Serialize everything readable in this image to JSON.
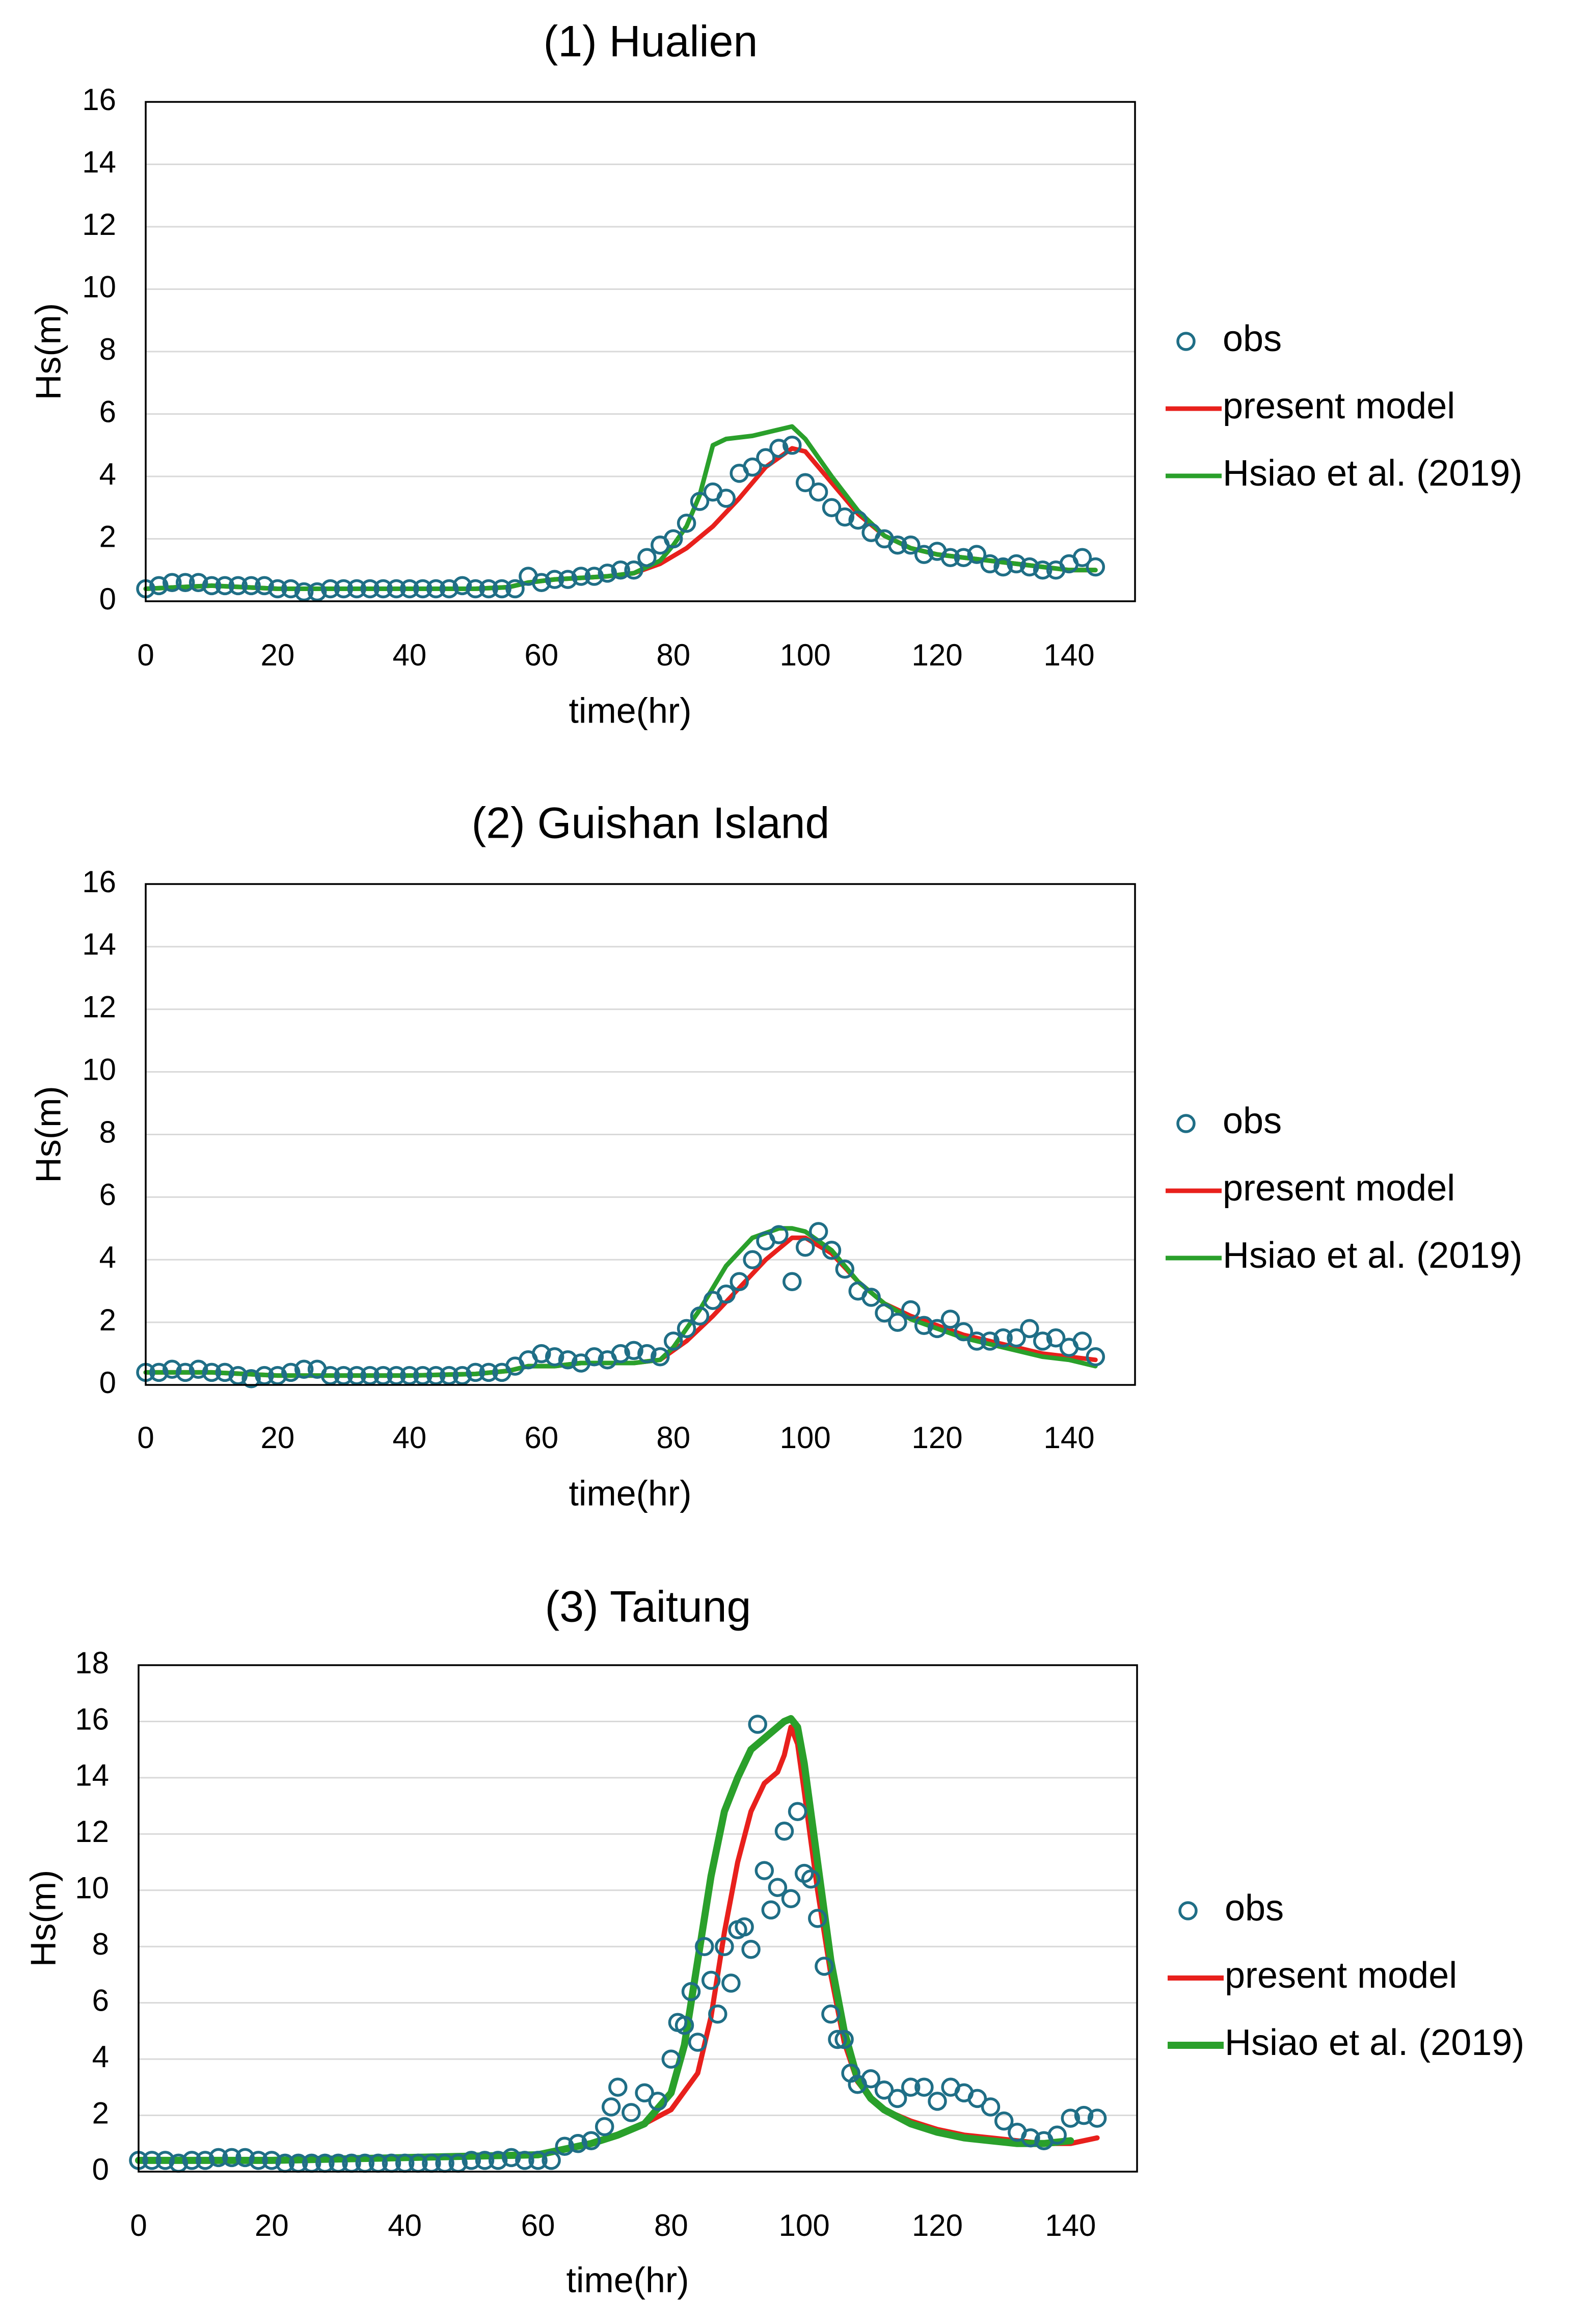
{
  "chart_data": [
    {
      "type": "line",
      "title": "(1) Hualien",
      "xlabel": "time(hr)",
      "ylabel": "Hs(m)",
      "xlim": [
        0,
        150
      ],
      "ylim": [
        0,
        16
      ],
      "xticks": [
        "0",
        "20",
        "40",
        "60",
        "80",
        "100",
        "120",
        "140"
      ],
      "yticks": [
        "0",
        "2",
        "4",
        "6",
        "8",
        "10",
        "12",
        "14",
        "16"
      ],
      "legend": [
        "obs",
        "present model",
        "Hsiao et al. (2019)"
      ],
      "colors": {
        "obs": "#1f6e86",
        "present model": "#e8201c",
        "Hsiao et al. (2019)": "#2aa02b"
      },
      "series": [
        {
          "name": "present model",
          "x": [
            0,
            10,
            20,
            30,
            40,
            50,
            55,
            58,
            62,
            66,
            70,
            74,
            78,
            82,
            86,
            90,
            94,
            98,
            100,
            104,
            108,
            112,
            116,
            120,
            124,
            128,
            132,
            136,
            140,
            144
          ],
          "values": [
            0.4,
            0.5,
            0.4,
            0.4,
            0.4,
            0.4,
            0.45,
            0.6,
            0.7,
            0.75,
            0.8,
            0.9,
            1.2,
            1.7,
            2.4,
            3.3,
            4.3,
            4.9,
            4.8,
            3.8,
            2.8,
            2.1,
            1.7,
            1.5,
            1.4,
            1.3,
            1.2,
            1.1,
            1.0,
            1.0
          ]
        },
        {
          "name": "Hsiao et al. (2019)",
          "x": [
            0,
            10,
            20,
            30,
            40,
            50,
            55,
            58,
            62,
            66,
            70,
            74,
            78,
            80,
            82,
            84,
            85,
            86,
            88,
            92,
            96,
            98,
            100,
            104,
            108,
            112,
            116,
            120,
            124,
            128,
            132,
            136,
            140,
            144
          ],
          "values": [
            0.4,
            0.5,
            0.4,
            0.4,
            0.4,
            0.4,
            0.45,
            0.6,
            0.7,
            0.75,
            0.8,
            0.9,
            1.3,
            1.8,
            2.4,
            3.4,
            4.2,
            5.0,
            5.2,
            5.3,
            5.5,
            5.6,
            5.2,
            4.0,
            2.9,
            2.1,
            1.7,
            1.5,
            1.4,
            1.3,
            1.2,
            1.1,
            1.0,
            1.0
          ]
        },
        {
          "name": "obs",
          "x": [
            0,
            2,
            4,
            6,
            8,
            10,
            12,
            14,
            16,
            18,
            20,
            22,
            24,
            26,
            28,
            30,
            32,
            34,
            36,
            38,
            40,
            42,
            44,
            46,
            48,
            50,
            52,
            54,
            56,
            58,
            60,
            62,
            64,
            66,
            68,
            70,
            72,
            74,
            76,
            78,
            80,
            82,
            84,
            86,
            88,
            90,
            92,
            94,
            96,
            98,
            100,
            102,
            104,
            106,
            108,
            110,
            112,
            114,
            116,
            118,
            120,
            122,
            124,
            126,
            128,
            130,
            132,
            134,
            136,
            138,
            140,
            142,
            144
          ],
          "values": [
            0.4,
            0.5,
            0.6,
            0.6,
            0.6,
            0.5,
            0.5,
            0.5,
            0.5,
            0.5,
            0.4,
            0.4,
            0.3,
            0.3,
            0.4,
            0.4,
            0.4,
            0.4,
            0.4,
            0.4,
            0.4,
            0.4,
            0.4,
            0.4,
            0.5,
            0.4,
            0.4,
            0.4,
            0.4,
            0.8,
            0.6,
            0.7,
            0.7,
            0.8,
            0.8,
            0.9,
            1.0,
            1.0,
            1.4,
            1.8,
            2.0,
            2.5,
            3.2,
            3.5,
            3.3,
            4.1,
            4.3,
            4.6,
            4.9,
            5.0,
            3.8,
            3.5,
            3.0,
            2.7,
            2.6,
            2.2,
            2.0,
            1.8,
            1.8,
            1.5,
            1.6,
            1.4,
            1.4,
            1.5,
            1.2,
            1.1,
            1.2,
            1.1,
            1.0,
            1.0,
            1.2,
            1.4,
            1.1
          ]
        }
      ]
    },
    {
      "type": "line",
      "title": "(2) Guishan Island",
      "xlabel": "time(hr)",
      "ylabel": "Hs(m)",
      "xlim": [
        0,
        150
      ],
      "ylim": [
        0,
        16
      ],
      "xticks": [
        "0",
        "20",
        "40",
        "60",
        "80",
        "100",
        "120",
        "140"
      ],
      "yticks": [
        "0",
        "2",
        "4",
        "6",
        "8",
        "10",
        "12",
        "14",
        "16"
      ],
      "legend": [
        "obs",
        "present model",
        "Hsiao et al. (2019)"
      ],
      "colors": {
        "obs": "#1f6e86",
        "present model": "#e8201c",
        "Hsiao et al. (2019)": "#2aa02b"
      },
      "series": [
        {
          "name": "present model",
          "x": [
            0,
            10,
            20,
            30,
            40,
            50,
            55,
            58,
            62,
            66,
            70,
            74,
            78,
            82,
            86,
            90,
            94,
            98,
            100,
            104,
            108,
            112,
            116,
            120,
            124,
            128,
            132,
            136,
            140,
            144
          ],
          "values": [
            0.4,
            0.4,
            0.3,
            0.3,
            0.3,
            0.35,
            0.45,
            0.6,
            0.6,
            0.7,
            0.7,
            0.7,
            0.8,
            1.4,
            2.2,
            3.1,
            4.0,
            4.7,
            4.7,
            4.2,
            3.3,
            2.6,
            2.2,
            1.9,
            1.6,
            1.4,
            1.2,
            1.0,
            0.9,
            0.8
          ]
        },
        {
          "name": "Hsiao et al. (2019)",
          "x": [
            0,
            10,
            20,
            30,
            40,
            50,
            55,
            58,
            62,
            66,
            70,
            74,
            78,
            80,
            84,
            88,
            92,
            96,
            98,
            100,
            104,
            108,
            112,
            116,
            120,
            124,
            128,
            132,
            136,
            140,
            144
          ],
          "values": [
            0.4,
            0.4,
            0.3,
            0.3,
            0.3,
            0.35,
            0.45,
            0.6,
            0.6,
            0.7,
            0.7,
            0.7,
            0.8,
            1.2,
            2.4,
            3.8,
            4.7,
            5.0,
            5.0,
            4.9,
            4.3,
            3.3,
            2.6,
            2.1,
            1.8,
            1.5,
            1.3,
            1.1,
            0.9,
            0.8,
            0.6
          ]
        },
        {
          "name": "obs",
          "x": [
            0,
            2,
            4,
            6,
            8,
            10,
            12,
            14,
            16,
            18,
            20,
            22,
            24,
            26,
            28,
            30,
            32,
            34,
            36,
            38,
            40,
            42,
            44,
            46,
            48,
            50,
            52,
            54,
            56,
            58,
            60,
            62,
            64,
            66,
            68,
            70,
            72,
            74,
            76,
            78,
            80,
            82,
            84,
            86,
            88,
            90,
            92,
            94,
            96,
            98,
            100,
            102,
            104,
            106,
            108,
            110,
            112,
            114,
            116,
            118,
            120,
            122,
            124,
            126,
            128,
            130,
            132,
            134,
            136,
            138,
            140,
            142,
            144
          ],
          "values": [
            0.4,
            0.4,
            0.5,
            0.4,
            0.5,
            0.4,
            0.4,
            0.3,
            0.2,
            0.3,
            0.3,
            0.4,
            0.5,
            0.5,
            0.3,
            0.3,
            0.3,
            0.3,
            0.3,
            0.3,
            0.3,
            0.3,
            0.3,
            0.3,
            0.3,
            0.4,
            0.4,
            0.4,
            0.6,
            0.8,
            1.0,
            0.9,
            0.8,
            0.7,
            0.9,
            0.8,
            1.0,
            1.1,
            1.0,
            0.9,
            1.4,
            1.8,
            2.2,
            2.7,
            2.9,
            3.3,
            4.0,
            4.6,
            4.8,
            3.3,
            4.4,
            4.9,
            4.3,
            3.7,
            3.0,
            2.8,
            2.3,
            2.0,
            2.4,
            1.9,
            1.8,
            2.1,
            1.7,
            1.4,
            1.4,
            1.5,
            1.5,
            1.8,
            1.4,
            1.5,
            1.2,
            1.4,
            0.9
          ]
        }
      ]
    },
    {
      "type": "line",
      "title": "(3) Taitung",
      "xlabel": "time(hr)",
      "ylabel": "Hs(m)",
      "xlim": [
        0,
        150
      ],
      "ylim": [
        0,
        18
      ],
      "xticks": [
        "0",
        "20",
        "40",
        "60",
        "80",
        "100",
        "120",
        "140"
      ],
      "yticks": [
        "0",
        "2",
        "4",
        "6",
        "8",
        "10",
        "12",
        "14",
        "16",
        "18"
      ],
      "legend": [
        "obs",
        "present model",
        "Hsiao et al. (2019)"
      ],
      "colors": {
        "obs": "#1f6e86",
        "present model": "#e8201c",
        "Hsiao et al. (2019)": "#2aa02b"
      },
      "series": [
        {
          "name": "present model",
          "x": [
            0,
            20,
            40,
            60,
            64,
            68,
            72,
            76,
            80,
            84,
            86,
            88,
            90,
            92,
            94,
            96,
            97,
            98,
            99,
            100,
            102,
            104,
            106,
            108,
            110,
            112,
            116,
            120,
            124,
            128,
            132,
            136,
            140,
            144
          ],
          "values": [
            0.4,
            0.4,
            0.5,
            0.6,
            0.8,
            1.0,
            1.3,
            1.7,
            2.2,
            3.5,
            5.5,
            8.5,
            11.0,
            12.8,
            13.8,
            14.2,
            14.8,
            15.8,
            15.2,
            13.5,
            10.0,
            7.0,
            4.6,
            3.2,
            2.6,
            2.2,
            1.8,
            1.5,
            1.3,
            1.2,
            1.1,
            1.0,
            1.0,
            1.2
          ]
        },
        {
          "name": "Hsiao et al. (2019)",
          "x": [
            0,
            20,
            40,
            60,
            64,
            68,
            72,
            76,
            80,
            82,
            84,
            86,
            88,
            90,
            92,
            94,
            96,
            97,
            98,
            99,
            100,
            102,
            104,
            106,
            108,
            110,
            112,
            116,
            120,
            124,
            128,
            132,
            136,
            140
          ],
          "values": [
            0.4,
            0.4,
            0.5,
            0.6,
            0.8,
            1.0,
            1.3,
            1.7,
            2.8,
            4.5,
            7.5,
            10.5,
            12.8,
            14.0,
            15.0,
            15.4,
            15.8,
            16.0,
            16.1,
            15.8,
            14.5,
            11.0,
            7.5,
            5.0,
            3.3,
            2.6,
            2.2,
            1.7,
            1.4,
            1.2,
            1.1,
            1.0,
            1.0,
            1.1
          ]
        },
        {
          "name": "obs",
          "x": [
            0,
            2,
            4,
            6,
            8,
            10,
            12,
            14,
            16,
            18,
            20,
            22,
            24,
            26,
            28,
            30,
            32,
            34,
            36,
            38,
            40,
            42,
            44,
            46,
            48,
            50,
            52,
            54,
            56,
            58,
            60,
            62,
            64,
            66,
            68,
            70,
            71,
            72,
            74,
            76,
            78,
            80,
            81,
            82,
            83,
            84,
            85,
            86,
            87,
            88,
            89,
            90,
            91,
            92,
            93,
            94,
            95,
            96,
            97,
            98,
            99,
            100,
            101,
            102,
            103,
            104,
            105,
            106,
            107,
            108,
            110,
            112,
            114,
            116,
            118,
            120,
            122,
            124,
            126,
            128,
            130,
            132,
            134,
            136,
            138,
            140,
            142,
            144
          ],
          "values": [
            0.4,
            0.4,
            0.4,
            0.3,
            0.4,
            0.4,
            0.5,
            0.5,
            0.5,
            0.4,
            0.4,
            0.3,
            0.3,
            0.3,
            0.3,
            0.3,
            0.3,
            0.3,
            0.3,
            0.3,
            0.3,
            0.3,
            0.3,
            0.3,
            0.3,
            0.4,
            0.4,
            0.4,
            0.5,
            0.4,
            0.4,
            0.4,
            0.9,
            1.0,
            1.1,
            1.6,
            2.3,
            3.0,
            2.1,
            2.8,
            2.5,
            4.0,
            5.3,
            5.2,
            6.4,
            4.6,
            8.0,
            6.8,
            5.6,
            8.0,
            6.7,
            8.6,
            8.7,
            7.9,
            15.9,
            10.7,
            9.3,
            10.1,
            12.1,
            9.7,
            12.8,
            10.6,
            10.4,
            9.0,
            7.3,
            5.6,
            4.7,
            4.7,
            3.5,
            3.1,
            3.3,
            2.9,
            2.6,
            3.0,
            3.0,
            2.5,
            3.0,
            2.8,
            2.6,
            2.3,
            1.8,
            1.4,
            1.2,
            1.1,
            1.3,
            1.9,
            2.0,
            1.9
          ]
        }
      ]
    }
  ]
}
